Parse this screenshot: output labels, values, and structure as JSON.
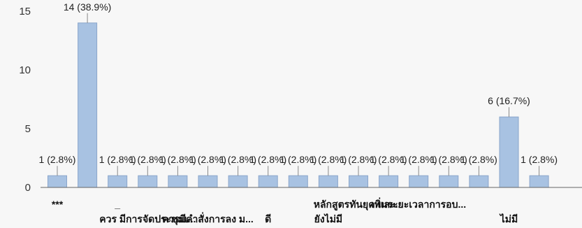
{
  "chart_data": {
    "type": "bar",
    "ylim": [
      0,
      15
    ],
    "yticks": [
      0,
      5,
      10,
      15
    ],
    "grid": false,
    "legend": "none",
    "colors": {
      "bar": "#a8c2e2",
      "bar_edge": "#8aa6cb",
      "axis": "#666666"
    },
    "categories": [
      "***",
      "",
      "_",
      "ควร มีการจัดประชุมเ...",
      "",
      "ควรมีคำสั่งการลง ม...",
      "",
      "ดี",
      "",
      "ยังไม่มี",
      "หลักสูตรทันยุค และ...",
      "",
      "เพิ่มระยะเวลาการอบ...",
      "",
      "",
      "ไม่มี",
      ""
    ],
    "values": [
      1,
      14,
      1,
      1,
      1,
      1,
      1,
      1,
      1,
      1,
      1,
      1,
      1,
      1,
      1,
      6,
      1
    ],
    "data_labels": [
      "1 (2.8%)",
      "14 (38.9%)",
      "1 (2.8%)",
      "1 (2.8%)",
      "1 (2.8%)",
      "1 (2.8%)",
      "1 (2.8%)",
      "1 (2.8%)",
      "1 (2.8%)",
      "1 (2.8%)",
      "1 (2.8%)",
      "1 (2.8%)",
      "1 (2.8%)",
      "1 (2.8%)",
      "1 (2.8%)",
      "6 (16.7%)",
      "1 (2.8%)"
    ]
  }
}
